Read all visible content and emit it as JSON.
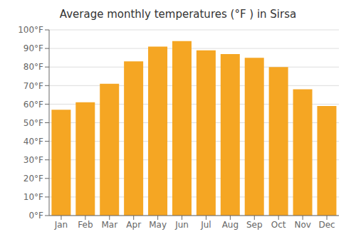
{
  "chart_data": {
    "type": "bar",
    "title": "Average monthly temperatures (°F ) in Sirsa",
    "categories": [
      "Jan",
      "Feb",
      "Mar",
      "Apr",
      "May",
      "Jun",
      "Jul",
      "Aug",
      "Sep",
      "Oct",
      "Nov",
      "Dec"
    ],
    "values": [
      57,
      61,
      71,
      83,
      91,
      94,
      89,
      87,
      85,
      80,
      68,
      59
    ],
    "color": "#F5A623",
    "ylim": [
      0,
      100
    ],
    "yticks": [
      {
        "value": 0,
        "label": "0°F"
      },
      {
        "value": 10,
        "label": "10°F"
      },
      {
        "value": 20,
        "label": "20°F"
      },
      {
        "value": 30,
        "label": "30°F"
      },
      {
        "value": 40,
        "label": "40°F"
      },
      {
        "value": 50,
        "label": "50°F"
      },
      {
        "value": 60,
        "label": "60°F"
      },
      {
        "value": 70,
        "label": "70°F"
      },
      {
        "value": 80,
        "label": "80°F"
      },
      {
        "value": 90,
        "label": "90°F"
      },
      {
        "value": 100,
        "label": "100°F"
      }
    ],
    "grid": true
  }
}
